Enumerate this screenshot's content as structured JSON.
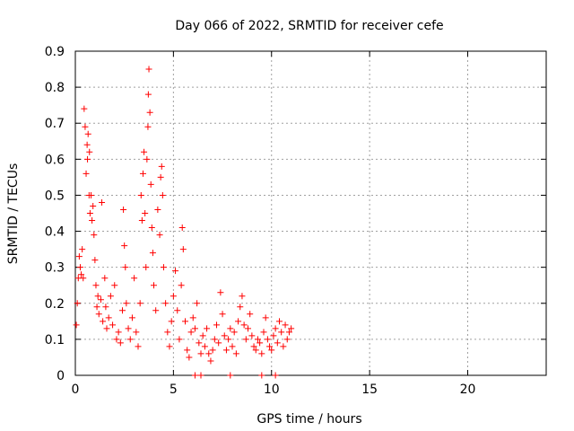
{
  "chart_data": {
    "type": "scatter",
    "title": "Day 066 of 2022, SRMTID for receiver cefe",
    "xlabel": "GPS time / hours",
    "ylabel": "SRMTID / TECUs",
    "xlim": [
      0,
      24
    ],
    "ylim": [
      0,
      0.9
    ],
    "x_ticks": [
      0,
      5,
      10,
      15,
      20
    ],
    "y_ticks": [
      0,
      0.1,
      0.2,
      0.3,
      0.4,
      0.5,
      0.6,
      0.7,
      0.8,
      0.9
    ],
    "grid": true,
    "marker": "+",
    "series": [
      {
        "name": "SRMTID",
        "color": "#ff0000",
        "points": [
          [
            0.05,
            0.14
          ],
          [
            0.1,
            0.2
          ],
          [
            0.15,
            0.27
          ],
          [
            0.2,
            0.33
          ],
          [
            0.25,
            0.3
          ],
          [
            0.3,
            0.28
          ],
          [
            0.35,
            0.35
          ],
          [
            0.4,
            0.27
          ],
          [
            0.45,
            0.74
          ],
          [
            0.5,
            0.69
          ],
          [
            0.55,
            0.56
          ],
          [
            0.6,
            0.64
          ],
          [
            0.62,
            0.6
          ],
          [
            0.65,
            0.67
          ],
          [
            0.7,
            0.5
          ],
          [
            0.72,
            0.62
          ],
          [
            0.75,
            0.45
          ],
          [
            0.8,
            0.5
          ],
          [
            0.85,
            0.43
          ],
          [
            0.9,
            0.47
          ],
          [
            0.95,
            0.39
          ],
          [
            1.0,
            0.32
          ],
          [
            1.05,
            0.25
          ],
          [
            1.1,
            0.19
          ],
          [
            1.15,
            0.22
          ],
          [
            1.2,
            0.17
          ],
          [
            1.3,
            0.21
          ],
          [
            1.35,
            0.48
          ],
          [
            1.4,
            0.15
          ],
          [
            1.5,
            0.27
          ],
          [
            1.55,
            0.19
          ],
          [
            1.6,
            0.13
          ],
          [
            1.7,
            0.16
          ],
          [
            1.8,
            0.22
          ],
          [
            1.9,
            0.14
          ],
          [
            2.0,
            0.25
          ],
          [
            2.1,
            0.1
          ],
          [
            2.2,
            0.12
          ],
          [
            2.3,
            0.09
          ],
          [
            2.4,
            0.18
          ],
          [
            2.45,
            0.46
          ],
          [
            2.5,
            0.36
          ],
          [
            2.55,
            0.3
          ],
          [
            2.6,
            0.2
          ],
          [
            2.7,
            0.13
          ],
          [
            2.8,
            0.1
          ],
          [
            2.9,
            0.16
          ],
          [
            3.0,
            0.27
          ],
          [
            3.1,
            0.12
          ],
          [
            3.2,
            0.08
          ],
          [
            3.3,
            0.2
          ],
          [
            3.35,
            0.5
          ],
          [
            3.4,
            0.43
          ],
          [
            3.45,
            0.56
          ],
          [
            3.5,
            0.62
          ],
          [
            3.55,
            0.45
          ],
          [
            3.6,
            0.3
          ],
          [
            3.65,
            0.6
          ],
          [
            3.7,
            0.69
          ],
          [
            3.72,
            0.78
          ],
          [
            3.75,
            0.85
          ],
          [
            3.8,
            0.73
          ],
          [
            3.85,
            0.53
          ],
          [
            3.9,
            0.41
          ],
          [
            3.95,
            0.34
          ],
          [
            4.0,
            0.25
          ],
          [
            4.1,
            0.18
          ],
          [
            4.2,
            0.46
          ],
          [
            4.3,
            0.39
          ],
          [
            4.35,
            0.55
          ],
          [
            4.4,
            0.58
          ],
          [
            4.45,
            0.5
          ],
          [
            4.5,
            0.3
          ],
          [
            4.6,
            0.2
          ],
          [
            4.7,
            0.12
          ],
          [
            4.8,
            0.08
          ],
          [
            4.9,
            0.15
          ],
          [
            5.0,
            0.22
          ],
          [
            5.1,
            0.29
          ],
          [
            5.2,
            0.18
          ],
          [
            5.3,
            0.1
          ],
          [
            5.4,
            0.25
          ],
          [
            5.45,
            0.41
          ],
          [
            5.5,
            0.35
          ],
          [
            5.6,
            0.15
          ],
          [
            5.7,
            0.07
          ],
          [
            5.8,
            0.05
          ],
          [
            5.9,
            0.12
          ],
          [
            6.0,
            0.16
          ],
          [
            6.1,
            0.13
          ],
          [
            6.2,
            0.2
          ],
          [
            6.3,
            0.09
          ],
          [
            6.4,
            0.06
          ],
          [
            6.5,
            0.11
          ],
          [
            6.6,
            0.08
          ],
          [
            6.7,
            0.13
          ],
          [
            6.8,
            0.06
          ],
          [
            6.9,
            0.04
          ],
          [
            7.0,
            0.07
          ],
          [
            7.1,
            0.1
          ],
          [
            7.2,
            0.14
          ],
          [
            7.3,
            0.09
          ],
          [
            7.4,
            0.23
          ],
          [
            7.5,
            0.17
          ],
          [
            7.6,
            0.11
          ],
          [
            7.7,
            0.07
          ],
          [
            7.8,
            0.1
          ],
          [
            7.9,
            0.13
          ],
          [
            8.0,
            0.08
          ],
          [
            8.1,
            0.12
          ],
          [
            8.2,
            0.06
          ],
          [
            8.3,
            0.15
          ],
          [
            8.4,
            0.19
          ],
          [
            8.5,
            0.22
          ],
          [
            8.6,
            0.14
          ],
          [
            8.7,
            0.1
          ],
          [
            8.8,
            0.13
          ],
          [
            8.9,
            0.17
          ],
          [
            9.0,
            0.11
          ],
          [
            9.1,
            0.08
          ],
          [
            9.2,
            0.07
          ],
          [
            9.3,
            0.1
          ],
          [
            9.4,
            0.09
          ],
          [
            9.5,
            0.06
          ],
          [
            9.6,
            0.12
          ],
          [
            9.7,
            0.16
          ],
          [
            9.8,
            0.1
          ],
          [
            9.9,
            0.08
          ],
          [
            10.0,
            0.07
          ],
          [
            10.1,
            0.11
          ],
          [
            10.2,
            0.13
          ],
          [
            10.3,
            0.09
          ],
          [
            10.4,
            0.15
          ],
          [
            10.5,
            0.12
          ],
          [
            10.6,
            0.08
          ],
          [
            10.7,
            0.14
          ],
          [
            10.8,
            0.1
          ],
          [
            10.9,
            0.12
          ],
          [
            11.0,
            0.13
          ],
          [
            6.1,
            0.0
          ],
          [
            6.4,
            0.0
          ],
          [
            7.9,
            0.0
          ],
          [
            9.5,
            0.0
          ],
          [
            10.2,
            0.0
          ]
        ]
      }
    ]
  }
}
